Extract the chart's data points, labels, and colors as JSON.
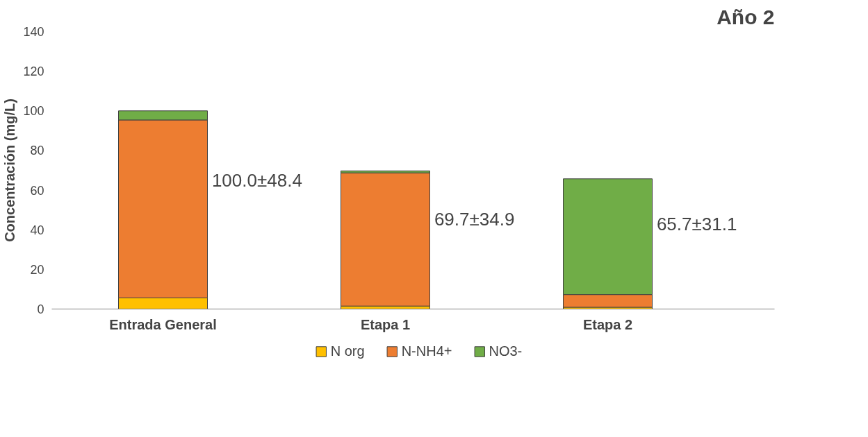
{
  "chart_data": {
    "type": "bar",
    "title": "Año 2",
    "ylabel": "Concentración (mg/L)",
    "categories": [
      "Entrada General",
      "Etapa 1",
      "Etapa 2"
    ],
    "stacked": true,
    "series": [
      {
        "name": "N org",
        "color": "#ffc000",
        "values": [
          5.6,
          1.5,
          0.9
        ]
      },
      {
        "name": "N-NH4+",
        "color": "#ed7d31",
        "values": [
          89.8,
          67.2,
          6.4
        ]
      },
      {
        "name": "NO3-",
        "color": "#70ad47",
        "values": [
          4.6,
          1.0,
          58.4
        ]
      }
    ],
    "annotations": [
      "100.0±48.4",
      "69.7±34.9",
      "65.7±31.1"
    ],
    "ylim": [
      0,
      140
    ],
    "yticks": [
      0,
      20,
      40,
      60,
      80,
      100,
      120,
      140
    ],
    "grid": false,
    "legend": "bottom"
  }
}
